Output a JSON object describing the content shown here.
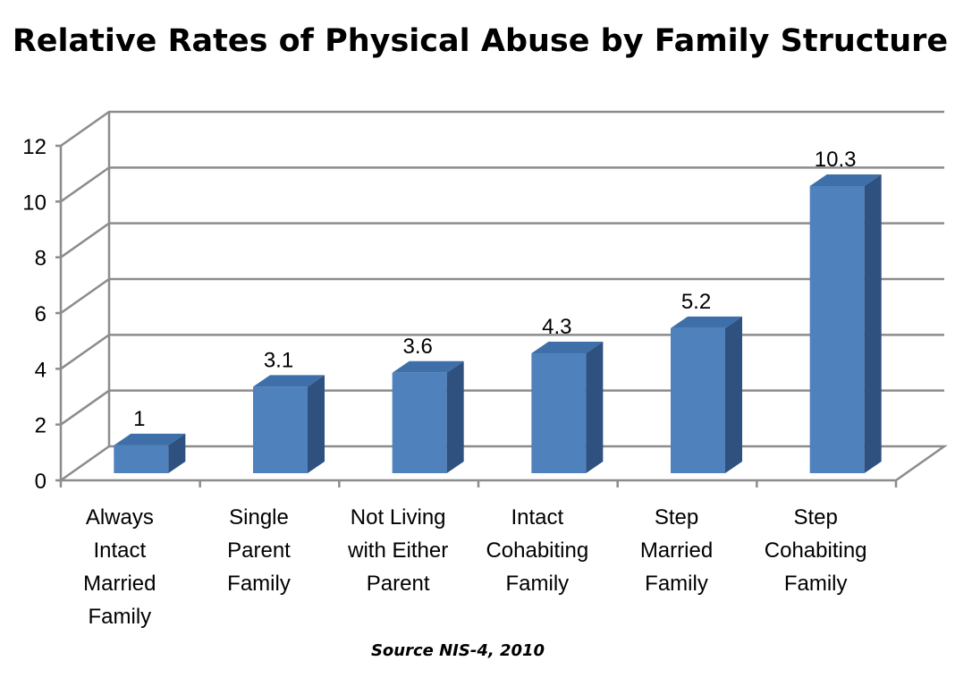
{
  "chart_data": {
    "type": "bar",
    "title": "Relative Rates of Physical Abuse by Family Structure",
    "source": "Source NIS-4, 2010",
    "categories": [
      [
        "Always",
        "Intact",
        "Married",
        "Family"
      ],
      [
        "Single",
        "Parent",
        "Family"
      ],
      [
        "Not Living",
        "with Either",
        "Parent"
      ],
      [
        "Intact",
        "Cohabiting",
        "Family"
      ],
      [
        "Step",
        "Married",
        "Family"
      ],
      [
        "Step",
        "Cohabiting",
        "Family"
      ]
    ],
    "values": [
      1,
      3.1,
      3.6,
      4.3,
      5.2,
      10.3
    ],
    "value_labels": [
      "1",
      "3.1",
      "3.6",
      "4.3",
      "5.2",
      "10.3"
    ],
    "yticks": [
      "0",
      "2",
      "4",
      "6",
      "8",
      "10",
      "12"
    ],
    "ylim": [
      0,
      12
    ],
    "grid": true,
    "legend": "none",
    "style": "3d-column",
    "colors": {
      "bar_front": "#4f81bd",
      "bar_top": "#3f6fa8",
      "bar_side": "#2f5180",
      "grid": "#8c8c8c"
    }
  }
}
